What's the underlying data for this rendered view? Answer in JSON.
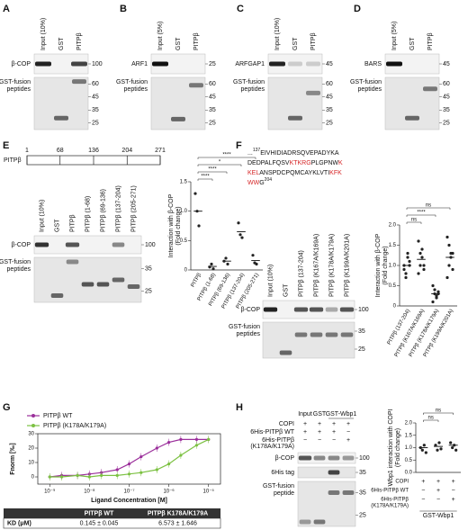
{
  "panels": {
    "A": {
      "letter": "A",
      "lanes": [
        "Input (10%)",
        "GST",
        "PITPβ"
      ],
      "rows": [
        {
          "label": [
            "β-COP"
          ],
          "markers": [
            100
          ]
        },
        {
          "label": [
            "GST-fusion",
            "peptides"
          ],
          "markers": [
            60,
            45,
            35,
            25
          ]
        }
      ]
    },
    "B": {
      "letter": "B",
      "lanes": [
        "Input (5%)",
        "GST",
        "PITPβ"
      ],
      "rows": [
        {
          "label": [
            "ARF1"
          ],
          "markers": [
            25
          ]
        },
        {
          "label": [
            "GST-fusion",
            "peptides"
          ],
          "markers": [
            60,
            45,
            35,
            25
          ]
        }
      ]
    },
    "C": {
      "letter": "C",
      "lanes": [
        "Input (10%)",
        "GST",
        "PITPβ"
      ],
      "rows": [
        {
          "label": [
            "ARFGAP1"
          ],
          "markers": [
            45
          ]
        },
        {
          "label": [
            "GST-fusion",
            "peptides"
          ],
          "markers": [
            60,
            45,
            35,
            25
          ]
        }
      ]
    },
    "D": {
      "letter": "D",
      "lanes": [
        "Input (5%)",
        "GST",
        "PITPβ"
      ],
      "rows": [
        {
          "label": [
            "BARS"
          ],
          "markers": [
            45
          ]
        },
        {
          "label": [
            "GST-fusion",
            "peptides"
          ],
          "markers": [
            60,
            45,
            35,
            25
          ]
        }
      ]
    },
    "E": {
      "letter": "E",
      "domain": {
        "label": "PITPβ",
        "positions": [
          1,
          68,
          136,
          204,
          271
        ]
      },
      "lanes": [
        "Input (10%)",
        "GST",
        "PITPβ",
        "PITPβ (1-68)",
        "PITPβ (69-136)",
        "PITPβ (137-204)",
        "PITPβ (205-271)"
      ],
      "rows": [
        {
          "label": [
            "β-COP"
          ],
          "markers": [
            100
          ]
        },
        {
          "label": [
            "GST-fusion",
            "peptides"
          ],
          "markers": [
            35,
            25
          ]
        }
      ],
      "chart": {
        "type": "dot",
        "y_label": [
          "Interaction with β-COP",
          "(Fold change)"
        ],
        "categories": [
          "PITPβ",
          "PITPβ (1-68)",
          "PITPβ (69-136)",
          "PITPβ (137-204)",
          "PITPβ (205-271)"
        ],
        "values": [
          1.0,
          0.06,
          0.15,
          0.65,
          0.16
        ],
        "points": [
          [
            1.3,
            1.0,
            0.75
          ],
          [
            0.05,
            0.1,
            0.02
          ],
          [
            0.15,
            0.2,
            0.1
          ],
          [
            0.8,
            0.6,
            0.55
          ],
          [
            0.25,
            0.12,
            0.1
          ]
        ],
        "significance": [
          null,
          "****",
          "****",
          "*",
          "****"
        ],
        "ylim": [
          0,
          1.5
        ],
        "yticks": [
          0,
          0.5,
          {
            "value": 1,
            "label": "1.0"
          },
          1.5
        ],
        "color": "#222"
      }
    },
    "F": {
      "letter": "F",
      "sequence": [
        [
          {
            "text": "..."
          },
          {
            "text": "137",
            "sup": true
          },
          {
            "text": "EIVHIDIADRSQVEPADYKA"
          }
        ],
        [
          {
            "text": "DEDPALFQSV"
          },
          {
            "text": "KTKRG",
            "color": "#d62728"
          },
          {
            "text": "PLGPNW"
          },
          {
            "text": "K",
            "color": "#d62728"
          }
        ],
        [
          {
            "text": "KEL",
            "color": "#d62728"
          },
          {
            "text": "ANSPDCPQMCAYKLVTI"
          },
          {
            "text": "KFK",
            "color": "#d62728"
          }
        ],
        [
          {
            "text": "WW",
            "color": "#d62728"
          },
          {
            "text": "G"
          },
          {
            "text": "204",
            "sup": true
          }
        ]
      ],
      "lanes": [
        "Input (10%)",
        "GST",
        "PITPβ (137-204)",
        "PITPβ (K167A/K169A)",
        "PITPβ (K178A/K179A)",
        "PITPβ (K199A/K201A)"
      ],
      "rows": [
        {
          "label": [
            "β-COP"
          ],
          "markers": [
            100
          ]
        },
        {
          "label": [
            "GST-fusion",
            "peptides"
          ],
          "markers": [
            35,
            25
          ]
        }
      ],
      "chart": {
        "type": "dot",
        "y_label": [
          "Interaction with β-COP",
          "(Fold change)"
        ],
        "categories": [
          "PITPβ (137-204)",
          "PITPβ (K167A/K169A)",
          "PITPβ (K178A/K179A)",
          "PITPβ (K199A/K201A)"
        ],
        "values": [
          1.0,
          1.15,
          0.3,
          1.2
        ],
        "points": [
          [
            1.0,
            0.8,
            1.2,
            1.1,
            0.9,
            0.7,
            1.3,
            1.0
          ],
          [
            1.6,
            1.3,
            1.2,
            0.9,
            0.8,
            1.0,
            1.4,
            1.0
          ],
          [
            0.5,
            0.4,
            0.2,
            0.3,
            0.1,
            0.3,
            0.25,
            0.35
          ],
          [
            1.7,
            1.5,
            1.2,
            0.9,
            0.7,
            1.0,
            1.3,
            1.3
          ]
        ],
        "significance": [
          null,
          "ns",
          "****",
          "ns"
        ],
        "ylim": [
          0,
          2
        ],
        "yticks": [
          0,
          0.5,
          {
            "value": 1,
            "label": "1.0"
          },
          1.5,
          {
            "value": 2,
            "label": "2.0"
          }
        ],
        "color": "#222"
      }
    },
    "G": {
      "letter": "G",
      "chart": {
        "type": "line",
        "y_label": "Fnorm [‰]",
        "x_label": "Ligand Concentration [M]",
        "log_x": true,
        "x": [
          1e-09,
          2e-09,
          5e-09,
          1e-08,
          2e-08,
          5e-08,
          1e-07,
          2e-07,
          5e-07,
          1e-06,
          2e-06,
          5e-06,
          1e-05
        ],
        "series": [
          {
            "name": "PITPβ WT",
            "color": "#9b2f9b",
            "values": [
              0,
              1,
              1,
              2,
              3,
              5,
              9,
              14,
              20,
              24,
              26,
              26,
              26
            ]
          },
          {
            "name": "PITPβ (K178A/K179A)",
            "color": "#7cc142",
            "values": [
              0,
              0,
              1,
              0,
              1,
              1,
              2,
              3,
              5,
              9,
              15,
              22,
              26
            ]
          }
        ],
        "xlim": [
          5e-10,
          2e-05
        ],
        "xticks": [
          {
            "value": 1e-09,
            "label": "10⁻⁹"
          },
          {
            "value": 1e-08,
            "label": "10⁻⁸"
          },
          {
            "value": 1e-07,
            "label": "10⁻⁷"
          },
          {
            "value": 1e-06,
            "label": "10⁻⁶"
          },
          {
            "value": 1e-05,
            "label": "10⁻⁵"
          }
        ],
        "ylim": [
          -5,
          30
        ],
        "yticks": [
          0,
          10,
          20,
          30
        ]
      },
      "kd_table": {
        "header": [
          "PITPβ WT",
          "PITPβ K178A/K179A"
        ],
        "row_label": "KD (μM)",
        "values": [
          "0.145 ± 0.045",
          "6.573 ± 1.646"
        ]
      }
    },
    "H": {
      "letter": "H",
      "headers": [
        "Input",
        "GST",
        "GST-Wbp1"
      ],
      "conditions": [
        {
          "label": [
            "COPI"
          ],
          "signs": [
            "+",
            "+",
            "+",
            "+"
          ]
        },
        {
          "label": [
            "6His-PITPβ WT"
          ],
          "signs": [
            "+",
            "+",
            "+",
            "−"
          ]
        },
        {
          "label": [
            "6His-PITPβ",
            "(K178A/K179A)"
          ],
          "signs": [
            "−",
            "−",
            "−",
            "+"
          ]
        }
      ],
      "rows": [
        {
          "label": [
            "β-COP"
          ],
          "markers": [
            100
          ]
        },
        {
          "label": [
            "6His tag"
          ],
          "markers": [
            35
          ]
        },
        {
          "label": [
            "GST-fusion",
            "peptide"
          ],
          "markers": [
            35,
            25
          ]
        }
      ],
      "chart": {
        "type": "dot",
        "y_label": [
          "Wbp1 interaction with COPI",
          "(Fold change)"
        ],
        "conditions": [
          {
            "label": [
              "COPI"
            ],
            "signs": [
              "+",
              "+",
              "+"
            ]
          },
          {
            "label": [
              "6His-PITPβ WT"
            ],
            "signs": [
              "−",
              "+",
              "−"
            ]
          },
          {
            "label": [
              "6His-PITPβ",
              "(K178A/K179A)"
            ],
            "signs": [
              "−",
              "−",
              "+"
            ]
          }
        ],
        "group_label": "GST-Wbp1",
        "values": [
          1.0,
          1.05,
          1.1
        ],
        "points": [
          [
            1.0,
            0.9,
            1.1,
            0.8
          ],
          [
            1.1,
            0.9,
            1.2,
            0.95
          ],
          [
            1.2,
            1.0,
            1.1,
            0.9
          ]
        ],
        "significance": [
          null,
          "ns",
          "ns"
        ],
        "ylim": [
          0,
          2
        ],
        "yticks": [
          {
            "value": 0,
            "label": "0.0"
          },
          0.5,
          {
            "value": 1,
            "label": "1.0"
          },
          1.5,
          {
            "value": 2,
            "label": "2.0"
          }
        ],
        "color": "#222"
      }
    }
  }
}
